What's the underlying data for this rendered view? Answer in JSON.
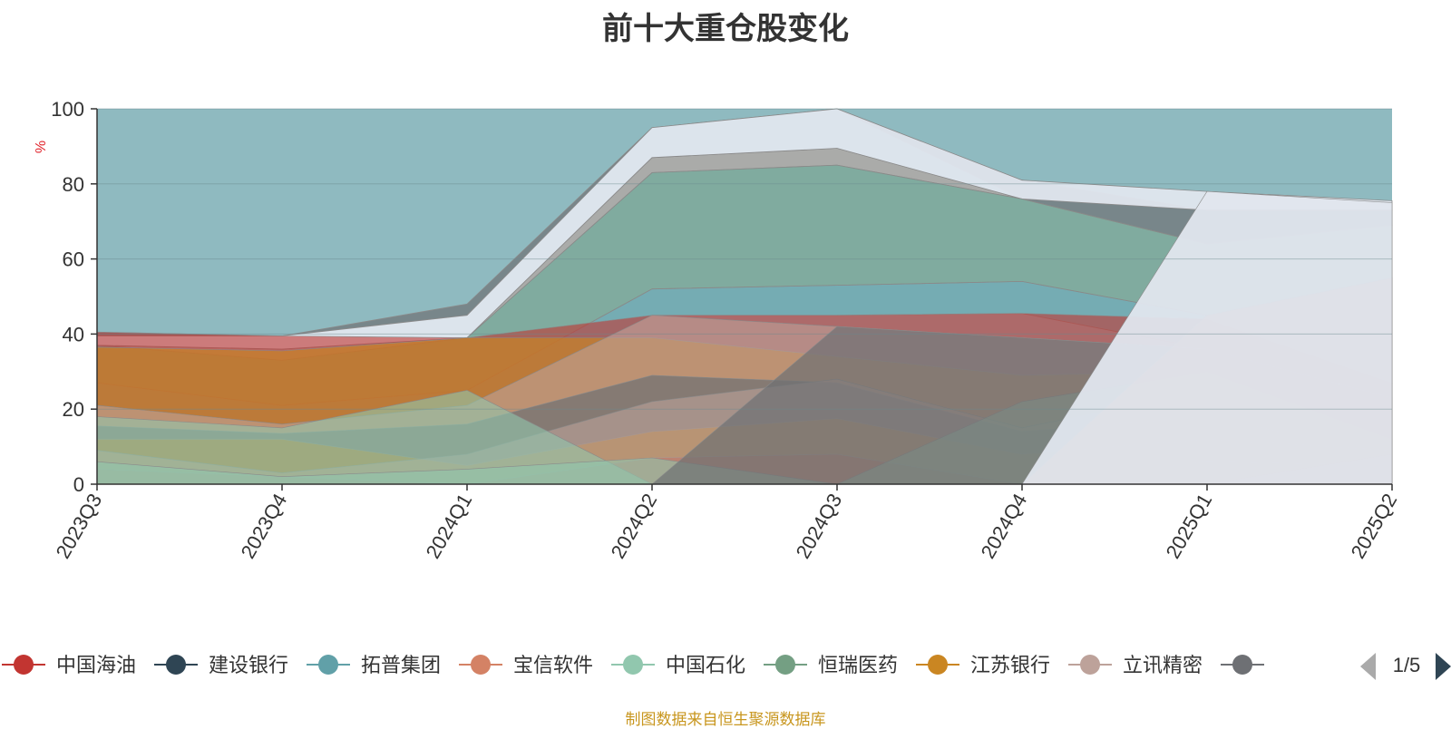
{
  "title": "前十大重仓股变化",
  "source_note": "制图数据来自恒生聚源数据库",
  "colors": {
    "background_fill": "#8fbac0",
    "axis": "#333333",
    "grid": "#6a8a8e",
    "unit_label": "#e0242c",
    "source": "#c8961e"
  },
  "legend": {
    "page_indicator": "1/5",
    "prev_icon": "triangle-left-icon",
    "next_icon": "triangle-right-icon",
    "items": [
      {
        "name": "中国海油",
        "color": "#c23531"
      },
      {
        "name": "建设银行",
        "color": "#2f4554"
      },
      {
        "name": "拓普集团",
        "color": "#61a0a8"
      },
      {
        "name": "宝信软件",
        "color": "#d48265"
      },
      {
        "name": "中国石化",
        "color": "#91c7ae"
      },
      {
        "name": "恒瑞医药",
        "color": "#749f83"
      },
      {
        "name": "江苏银行",
        "color": "#ca8622"
      },
      {
        "name": "立讯精密",
        "color": "#bda29a"
      },
      {
        "name": "",
        "color": "#6e7074"
      }
    ]
  },
  "chart_data": {
    "type": "area",
    "title": "前十大重仓股变化",
    "ylabel": "%",
    "xlabel": "",
    "ylim": [
      0,
      100
    ],
    "yticks": [
      0,
      20,
      40,
      60,
      80,
      100
    ],
    "categories": [
      "2023Q3",
      "2023Q4",
      "2024Q1",
      "2024Q2",
      "2024Q3",
      "2024Q4",
      "2025Q1",
      "2025Q2"
    ],
    "grid": true,
    "bands": [
      {
        "color": "#c23531",
        "alpha": 0.6,
        "top": [
          40.5,
          39.5,
          39,
          45,
          45,
          45.5,
          44,
          27
        ]
      },
      {
        "color": "#ca8622",
        "alpha": 0.65,
        "top": [
          36.5,
          35.5,
          39,
          39,
          34,
          29,
          30,
          16
        ]
      },
      {
        "color": "#bda29a",
        "alpha": 0.6,
        "top": [
          21,
          16,
          21,
          45,
          42,
          39,
          36,
          11
        ]
      },
      {
        "color": "#6e7074",
        "alpha": 0.7,
        "top": [
          15.5,
          13.5,
          16,
          29,
          27,
          14,
          18,
          8
        ]
      },
      {
        "color": "#ca8622",
        "alpha": 0.65,
        "top": [
          12,
          12,
          5,
          14,
          17.5,
          8,
          12,
          9
        ]
      },
      {
        "color": "#c23531",
        "alpha": 0.6,
        "top": [
          4,
          2,
          0,
          7,
          8,
          0,
          0,
          0
        ]
      },
      {
        "color": "#2f4554",
        "alpha": 0.6,
        "top": [
          0,
          0,
          0,
          0,
          0,
          0,
          6,
          5
        ]
      },
      {
        "color": "#bda29a",
        "alpha": 0.6,
        "top": [
          9,
          3,
          8,
          22,
          28,
          15,
          25,
          12
        ]
      },
      {
        "color": "#91c7ae",
        "alpha": 0.6,
        "top": [
          18,
          15,
          25,
          0,
          0,
          22,
          30,
          12
        ]
      },
      {
        "color": "#91c7ae",
        "alpha": 0.6,
        "top": [
          6,
          2,
          4,
          7,
          0,
          0,
          0,
          8
        ]
      },
      {
        "color": "#6e7074",
        "alpha": 0.7,
        "top": [
          0,
          0,
          0,
          0,
          42,
          39,
          36,
          23
        ]
      },
      {
        "color": "#d48265",
        "alpha": 0.7,
        "top": [
          0,
          0,
          0,
          0,
          0,
          0,
          45,
          55
        ]
      },
      {
        "color": "#e0e6ee",
        "alpha": 0.95,
        "top": [
          0,
          0,
          0,
          0,
          0,
          0,
          78,
          75
        ]
      }
    ],
    "lines": [
      {
        "color": "#749f83",
        "alpha": 0.55,
        "upper": [
          37,
          33,
          39,
          83,
          85,
          76,
          64,
          69
        ],
        "lower": [
          27,
          21,
          25,
          52,
          53,
          54,
          45,
          27
        ]
      },
      {
        "color": "#61a0a8",
        "alpha": 0.55,
        "upper": [
          27,
          21,
          25,
          52,
          53,
          54,
          45,
          27
        ],
        "lower": [
          21,
          16,
          21,
          45,
          45,
          45.5,
          36,
          16
        ]
      },
      {
        "color": "#e0e6ee",
        "alpha": 0.95,
        "upper": [
          39.5,
          39.5,
          45,
          95,
          100,
          81,
          78,
          75.5
        ],
        "lower": [
          37,
          36,
          39,
          87,
          89.5,
          76,
          73,
          73
        ]
      },
      {
        "color": "#6e7074",
        "alpha": 0.7,
        "upper": [
          40.5,
          39.5,
          48,
          95,
          100,
          81,
          73,
          73
        ],
        "lower": [
          39.5,
          39.5,
          45,
          95,
          100,
          76,
          64,
          69
        ]
      },
      {
        "color": "#bda29a",
        "alpha": 0.6,
        "upper": [
          37,
          36,
          39,
          87,
          89.5,
          76,
          64,
          69
        ],
        "lower": [
          37,
          33,
          39,
          83,
          85,
          76,
          64,
          69
        ]
      }
    ]
  }
}
